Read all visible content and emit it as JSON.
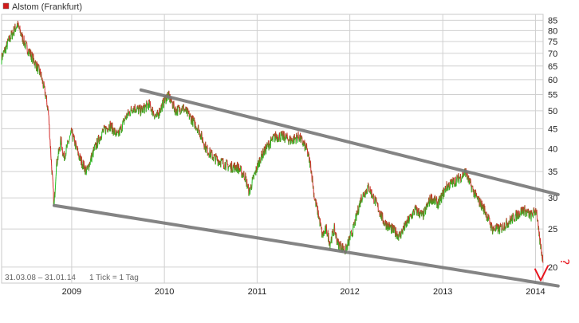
{
  "legend": {
    "label": "Alstom (Frankfurt)",
    "color": "#d11a1a"
  },
  "footer": {
    "range": "31.03.08 – 31.01.14",
    "tick_info": "1 Tick = 1 Tag"
  },
  "colors": {
    "up": "#1fbf1f",
    "down": "#d42a2a",
    "grid": "#d0d0d0",
    "trend": "#777777",
    "annotation": "#e8141d"
  },
  "chart_data": {
    "type": "line",
    "title": "Alstom (Frankfurt)",
    "scale": "log",
    "ylim": [
      18.2,
      88
    ],
    "y_ticks": [
      20,
      25,
      30,
      35,
      40,
      45,
      50,
      55,
      60,
      65,
      70,
      75,
      80,
      85
    ],
    "x_ticks": [
      "2009",
      "2010",
      "2011",
      "2012",
      "2013",
      "2014"
    ],
    "xlim": [
      "2008-03-31",
      "2014-01-31"
    ],
    "grid": true,
    "legend_position": "top-left",
    "series": [
      {
        "name": "Alstom (Frankfurt)",
        "points": [
          [
            "2008-03-31",
            68
          ],
          [
            "2008-05-01",
            76
          ],
          [
            "2008-06-01",
            83
          ],
          [
            "2008-07-01",
            74
          ],
          [
            "2008-08-01",
            68
          ],
          [
            "2008-09-01",
            62
          ],
          [
            "2008-09-20",
            55
          ],
          [
            "2008-10-01",
            50
          ],
          [
            "2008-10-10",
            40
          ],
          [
            "2008-10-24",
            28.5
          ],
          [
            "2008-11-01",
            36
          ],
          [
            "2008-11-20",
            42
          ],
          [
            "2008-12-01",
            38
          ],
          [
            "2009-01-01",
            44
          ],
          [
            "2009-02-01",
            38
          ],
          [
            "2009-03-01",
            35
          ],
          [
            "2009-04-01",
            40
          ],
          [
            "2009-05-01",
            44
          ],
          [
            "2009-06-01",
            46
          ],
          [
            "2009-07-01",
            43
          ],
          [
            "2009-08-01",
            48
          ],
          [
            "2009-09-01",
            51
          ],
          [
            "2009-10-01",
            50
          ],
          [
            "2009-11-01",
            52
          ],
          [
            "2009-12-01",
            48
          ],
          [
            "2010-01-01",
            53
          ],
          [
            "2010-01-15",
            55
          ],
          [
            "2010-02-15",
            50
          ],
          [
            "2010-03-15",
            51
          ],
          [
            "2010-04-15",
            48
          ],
          [
            "2010-05-15",
            45
          ],
          [
            "2010-06-15",
            40
          ],
          [
            "2010-07-15",
            38
          ],
          [
            "2010-08-15",
            37
          ],
          [
            "2010-09-15",
            36
          ],
          [
            "2010-10-15",
            36
          ],
          [
            "2010-11-15",
            34
          ],
          [
            "2010-12-01",
            31
          ],
          [
            "2010-12-20",
            34
          ],
          [
            "2011-01-15",
            38
          ],
          [
            "2011-02-15",
            41
          ],
          [
            "2011-03-15",
            43
          ],
          [
            "2011-04-15",
            43
          ],
          [
            "2011-05-15",
            42
          ],
          [
            "2011-06-15",
            43
          ],
          [
            "2011-07-15",
            40
          ],
          [
            "2011-08-01",
            36
          ],
          [
            "2011-08-15",
            30
          ],
          [
            "2011-09-01",
            27
          ],
          [
            "2011-09-15",
            24
          ],
          [
            "2011-10-01",
            25
          ],
          [
            "2011-10-15",
            23
          ],
          [
            "2011-11-01",
            25
          ],
          [
            "2011-11-15",
            23
          ],
          [
            "2011-12-01",
            22.5
          ],
          [
            "2011-12-15",
            22
          ],
          [
            "2012-01-15",
            25
          ],
          [
            "2012-02-15",
            30
          ],
          [
            "2012-03-15",
            32
          ],
          [
            "2012-04-15",
            29
          ],
          [
            "2012-05-15",
            26
          ],
          [
            "2012-06-15",
            25
          ],
          [
            "2012-07-15",
            24
          ],
          [
            "2012-08-15",
            26
          ],
          [
            "2012-09-15",
            28
          ],
          [
            "2012-10-15",
            27
          ],
          [
            "2012-11-15",
            30
          ],
          [
            "2012-12-15",
            29
          ],
          [
            "2013-01-15",
            32
          ],
          [
            "2013-02-15",
            33
          ],
          [
            "2013-03-15",
            34
          ],
          [
            "2013-04-01",
            35
          ],
          [
            "2013-04-15",
            33
          ],
          [
            "2013-05-15",
            30
          ],
          [
            "2013-06-15",
            28
          ],
          [
            "2013-07-15",
            25
          ],
          [
            "2013-08-15",
            25
          ],
          [
            "2013-09-15",
            26
          ],
          [
            "2013-10-15",
            27
          ],
          [
            "2013-11-15",
            28
          ],
          [
            "2013-12-15",
            27
          ],
          [
            "2014-01-05",
            28
          ],
          [
            "2014-01-15",
            24
          ],
          [
            "2014-01-25",
            22
          ],
          [
            "2014-01-31",
            20.5
          ]
        ]
      }
    ],
    "trend_lines": [
      {
        "from": [
          "2009-10-01",
          56.5
        ],
        "to": [
          "2014-03-31",
          30.6
        ]
      },
      {
        "from": [
          "2008-10-24",
          28.7
        ],
        "to": [
          "2014-03-31",
          17.9
        ]
      }
    ],
    "annotations": [
      "?",
      "v"
    ]
  }
}
